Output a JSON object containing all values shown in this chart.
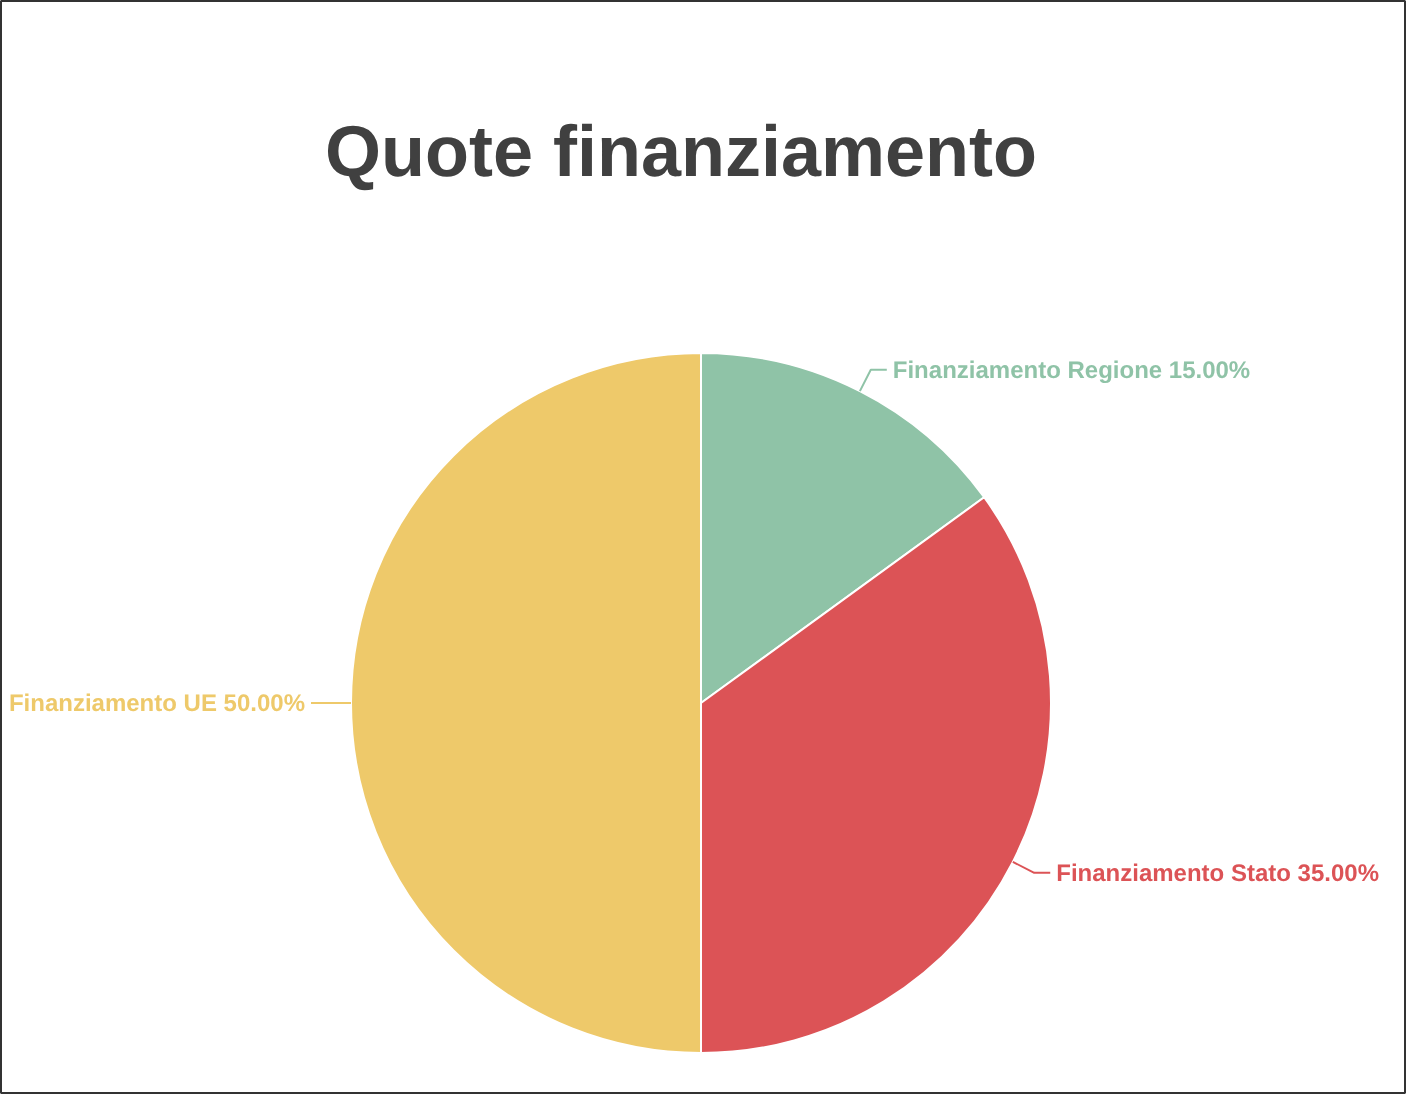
{
  "chart_data": {
    "type": "pie",
    "title": "Quote finanziamento",
    "categories": [
      "Finanziamento Regione",
      "Finanziamento Stato",
      "Finanziamento UE"
    ],
    "values": [
      15,
      35,
      50
    ],
    "colors": [
      "#8fc3a7",
      "#dc5356",
      "#eec96a"
    ],
    "value_labels": [
      "15.00%",
      "35.00%",
      "50.00%"
    ]
  }
}
